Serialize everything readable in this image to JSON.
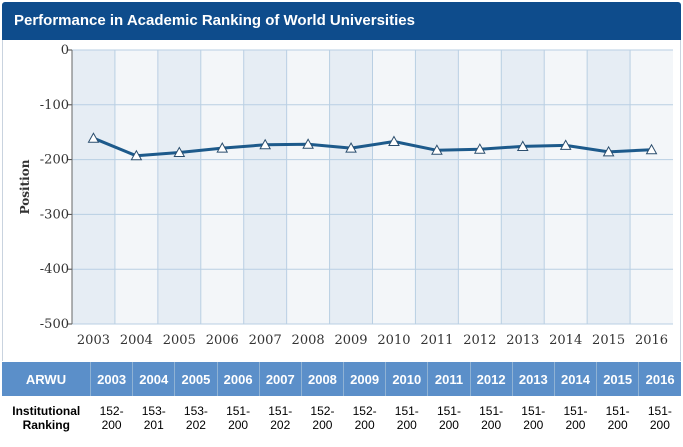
{
  "title": "Performance in Academic Ranking of World Universities",
  "colors": {
    "title_bar": "#0e4c8c",
    "plot_bg": "#f3f6f9",
    "plot_band": "#e6edf4",
    "grid": "#b9cfe3",
    "line": "#1d5a8b",
    "marker_fill": "#ffffff",
    "table_header": "#5b8fc9"
  },
  "chart_data": {
    "type": "line",
    "ylabel": "Position",
    "xlabel": "",
    "ylim": [
      -500,
      0
    ],
    "yticks": [
      0,
      -100,
      -200,
      -300,
      -400,
      -500
    ],
    "ytick_labels": [
      "0",
      "-100",
      "-200",
      "-300",
      "-400",
      "-500"
    ],
    "x": [
      "2003",
      "2004",
      "2005",
      "2006",
      "2007",
      "2008",
      "2009",
      "2010",
      "2011",
      "2012",
      "2013",
      "2014",
      "2015",
      "2016"
    ],
    "series": [
      {
        "values": [
          -161,
          -193,
          -187,
          -179,
          -173,
          -172,
          -179,
          -167,
          -183,
          -181,
          -176,
          -174,
          -186,
          -182
        ],
        "marker": "triangle"
      }
    ],
    "grid": true,
    "legend": "none"
  },
  "table": {
    "header_label": "ARWU",
    "years": [
      "2003",
      "2004",
      "2005",
      "2006",
      "2007",
      "2008",
      "2009",
      "2010",
      "2011",
      "2012",
      "2013",
      "2014",
      "2015",
      "2016"
    ],
    "row_label_line1": "Institutional",
    "row_label_line2": "Ranking",
    "rankings": [
      [
        "152-",
        "200"
      ],
      [
        "153-",
        "201"
      ],
      [
        "153-",
        "202"
      ],
      [
        "151-",
        "200"
      ],
      [
        "151-",
        "202"
      ],
      [
        "152-",
        "200"
      ],
      [
        "152-",
        "200"
      ],
      [
        "151-",
        "200"
      ],
      [
        "151-",
        "200"
      ],
      [
        "151-",
        "200"
      ],
      [
        "151-",
        "200"
      ],
      [
        "151-",
        "200"
      ],
      [
        "151-",
        "200"
      ],
      [
        "151-",
        "200"
      ]
    ]
  }
}
